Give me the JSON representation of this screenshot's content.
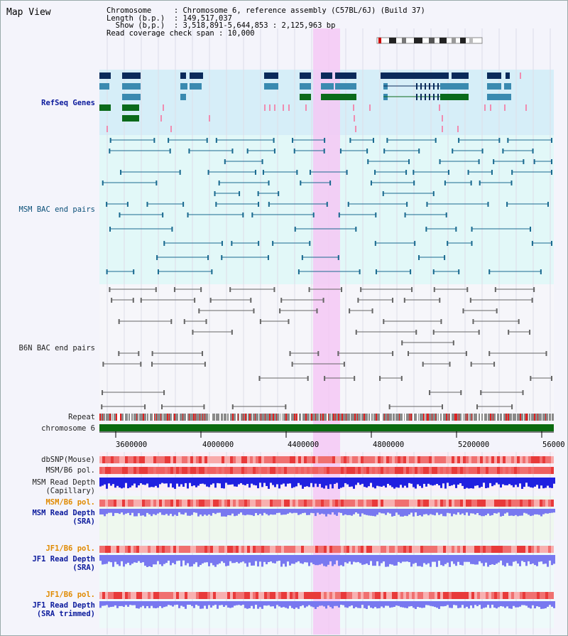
{
  "title": "Map View",
  "header": {
    "line1": "Chromosome     : Chromosome 6, reference assembly (C57BL/6J) (Build 37)",
    "line2": "Length (b.p.)  : 149,517,037",
    "line3": "  Show (b,p.)  : 3,518,891-5,644,853 : 2,125,963 bp",
    "line4": "Read coverage check span : 10,000"
  },
  "tracks": {
    "refseq": "RefSeq Genes",
    "msm_bac": "MSM BAC end pairs",
    "b6n_bac": "B6N BAC end pairs",
    "repeat": "Repeat",
    "chromosome": "chromosome 6",
    "dbsnp": "dbSNP(Mouse)",
    "msm_pol": "MSM/B6 pol.",
    "msm_depth_cap": "MSM Read Depth\n(Capillary)",
    "msm_pol_sra": "MSM/B6 pol.",
    "msm_depth_sra": "MSM Read Depth\n(SRA)",
    "jf1_pol": "JF1/B6 pol.",
    "jf1_depth": "JF1 Read Depth\n(SRA)",
    "jf1_pol2": "JF1/B6 pol.",
    "jf1_depth_trim": "JF1 Read Depth\n(SRA trimmed)"
  },
  "axis": {
    "ticks": [
      "3600000",
      "4000000",
      "4400000",
      "4800000",
      "5200000",
      "56000"
    ]
  },
  "colors": {
    "highlight": "#f4c8f4",
    "refseq_bg": "#d6eef8",
    "msm_bg": "#e2f8f8",
    "gene_dark": "#0b2a5a",
    "gene_mid": "#3a8ab0",
    "gene_green": "#0a6a1a",
    "chromosome_bar": "#0a6a10",
    "pol_red": "#e84040",
    "depth_blue": "#2020e0",
    "depth_light": "#7878f0"
  }
}
